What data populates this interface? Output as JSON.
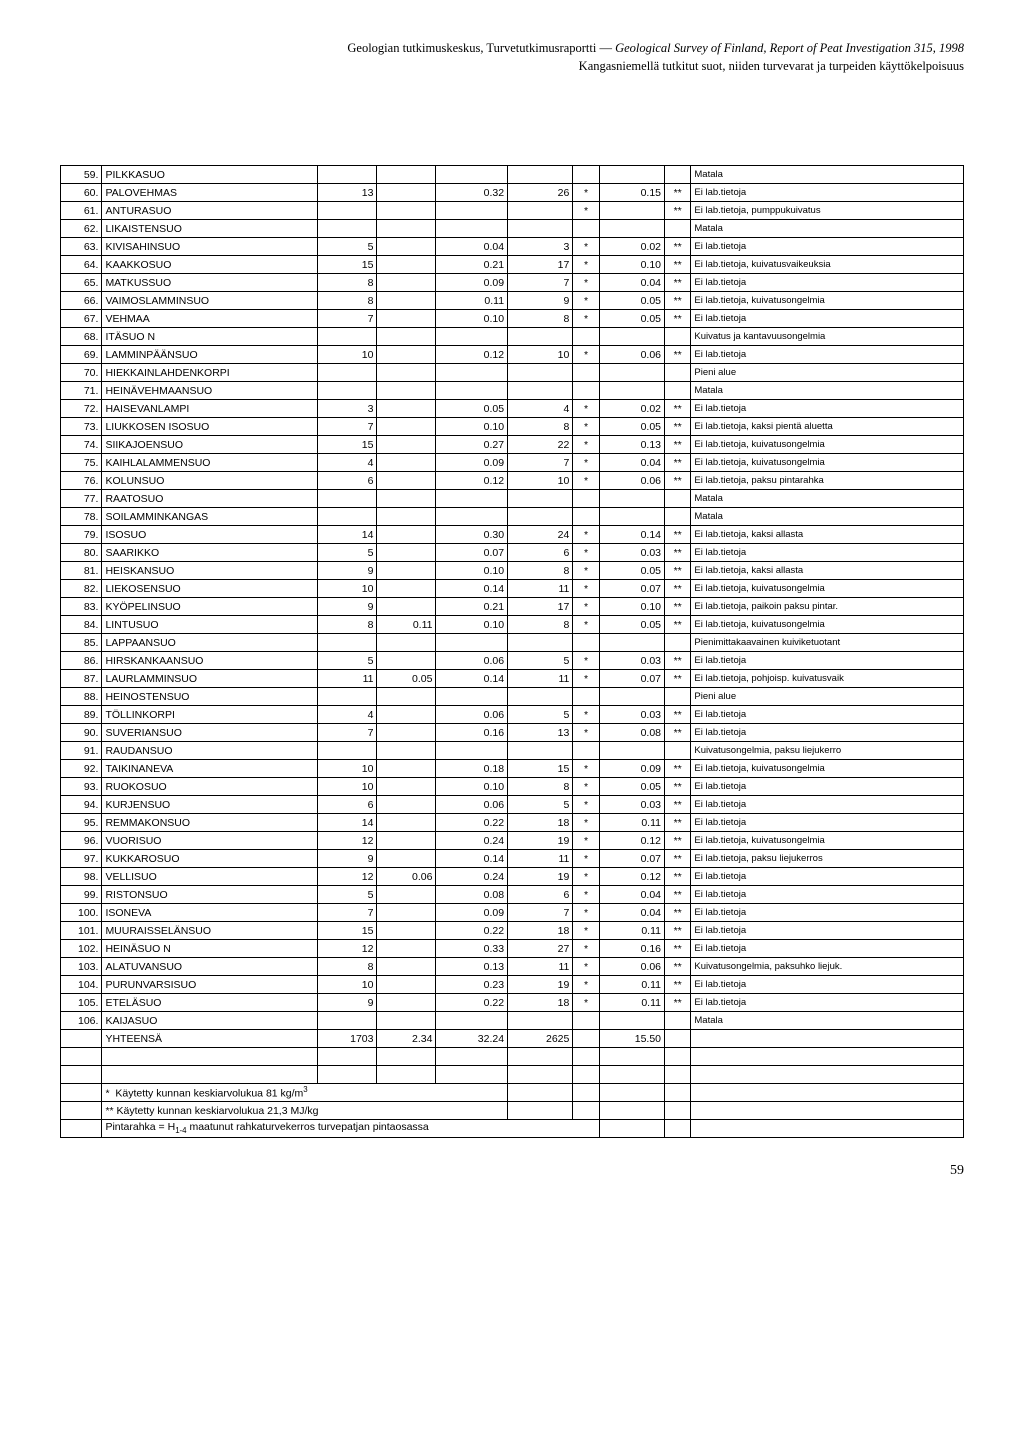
{
  "header": {
    "line1_left": "Geologian tutkimuskeskus, Turvetutkimusraportti — ",
    "line1_right": "Geological Survey of Finland, Report of Peat Investigation 315, 1998",
    "line2": "Kangasniemellä tutkitut suot, niiden turvevarat ja turpeiden käyttökelpoisuus"
  },
  "rows": [
    {
      "n": "59.",
      "name": "PILKKASUO",
      "v1": "",
      "v2": "",
      "v3": "",
      "v4": "",
      "s1": "",
      "v5": "",
      "s2": "",
      "note": "Matala"
    },
    {
      "n": "60.",
      "name": "PALOVEHMAS",
      "v1": "13",
      "v2": "",
      "v3": "0.32",
      "v4": "26",
      "s1": "*",
      "v5": "0.15",
      "s2": "**",
      "note": "Ei lab.tietoja"
    },
    {
      "n": "61.",
      "name": "ANTURASUO",
      "v1": "",
      "v2": "",
      "v3": "",
      "v4": "",
      "s1": "*",
      "v5": "",
      "s2": "**",
      "note": "Ei lab.tietoja, pumppukuivatus"
    },
    {
      "n": "62.",
      "name": "LIKAISTENSUO",
      "v1": "",
      "v2": "",
      "v3": "",
      "v4": "",
      "s1": "",
      "v5": "",
      "s2": "",
      "note": "Matala"
    },
    {
      "n": "63.",
      "name": "KIVISAHINSUO",
      "v1": "5",
      "v2": "",
      "v3": "0.04",
      "v4": "3",
      "s1": "*",
      "v5": "0.02",
      "s2": "**",
      "note": "Ei lab.tietoja"
    },
    {
      "n": "64.",
      "name": "KAAKKOSUO",
      "v1": "15",
      "v2": "",
      "v3": "0.21",
      "v4": "17",
      "s1": "*",
      "v5": "0.10",
      "s2": "**",
      "note": "Ei lab.tietoja, kuivatusvaikeuksia"
    },
    {
      "n": "65.",
      "name": "MATKUSSUO",
      "v1": "8",
      "v2": "",
      "v3": "0.09",
      "v4": "7",
      "s1": "*",
      "v5": "0.04",
      "s2": "**",
      "note": "Ei lab.tietoja"
    },
    {
      "n": "66.",
      "name": "VAIMOSLAMMINSUO",
      "v1": "8",
      "v2": "",
      "v3": "0.11",
      "v4": "9",
      "s1": "*",
      "v5": "0.05",
      "s2": "**",
      "note": "Ei lab.tietoja, kuivatusongelmia"
    },
    {
      "n": "67.",
      "name": "VEHMAA",
      "v1": "7",
      "v2": "",
      "v3": "0.10",
      "v4": "8",
      "s1": "*",
      "v5": "0.05",
      "s2": "**",
      "note": "Ei lab.tietoja"
    },
    {
      "n": "68.",
      "name": "ITÄSUO N",
      "v1": "",
      "v2": "",
      "v3": "",
      "v4": "",
      "s1": "",
      "v5": "",
      "s2": "",
      "note": "Kuivatus ja kantavuusongelmia"
    },
    {
      "n": "69.",
      "name": "LAMMINPÄÄNSUO",
      "v1": "10",
      "v2": "",
      "v3": "0.12",
      "v4": "10",
      "s1": "*",
      "v5": "0.06",
      "s2": "**",
      "note": "Ei lab.tietoja"
    },
    {
      "n": "70.",
      "name": "HIEKKAINLAHDENKORPI",
      "v1": "",
      "v2": "",
      "v3": "",
      "v4": "",
      "s1": "",
      "v5": "",
      "s2": "",
      "note": "Pieni alue"
    },
    {
      "n": "71.",
      "name": "HEINÄVEHMAANSUO",
      "v1": "",
      "v2": "",
      "v3": "",
      "v4": "",
      "s1": "",
      "v5": "",
      "s2": "",
      "note": "Matala"
    },
    {
      "n": "72.",
      "name": "HAISEVANLAMPI",
      "v1": "3",
      "v2": "",
      "v3": "0.05",
      "v4": "4",
      "s1": "*",
      "v5": "0.02",
      "s2": "**",
      "note": "Ei lab.tietoja"
    },
    {
      "n": "73.",
      "name": "LIUKKOSEN ISOSUO",
      "v1": "7",
      "v2": "",
      "v3": "0.10",
      "v4": "8",
      "s1": "*",
      "v5": "0.05",
      "s2": "**",
      "note": "Ei lab.tietoja, kaksi pientä aluetta"
    },
    {
      "n": "74.",
      "name": "SIIKAJOENSUO",
      "v1": "15",
      "v2": "",
      "v3": "0.27",
      "v4": "22",
      "s1": "*",
      "v5": "0.13",
      "s2": "**",
      "note": "Ei lab.tietoja, kuivatusongelmia"
    },
    {
      "n": "75.",
      "name": "KAIHLALAMMENSUO",
      "v1": "4",
      "v2": "",
      "v3": "0.09",
      "v4": "7",
      "s1": "*",
      "v5": "0.04",
      "s2": "**",
      "note": "Ei lab.tietoja, kuivatusongelmia"
    },
    {
      "n": "76.",
      "name": "KOLUNSUO",
      "v1": "6",
      "v2": "",
      "v3": "0.12",
      "v4": "10",
      "s1": "*",
      "v5": "0.06",
      "s2": "**",
      "note": "Ei lab.tietoja, paksu pintarahka"
    },
    {
      "n": "77.",
      "name": "RAATOSUO",
      "v1": "",
      "v2": "",
      "v3": "",
      "v4": "",
      "s1": "",
      "v5": "",
      "s2": "",
      "note": "Matala"
    },
    {
      "n": "78.",
      "name": "SOILAMMINKANGAS",
      "v1": "",
      "v2": "",
      "v3": "",
      "v4": "",
      "s1": "",
      "v5": "",
      "s2": "",
      "note": "Matala"
    },
    {
      "n": "79.",
      "name": "ISOSUO",
      "v1": "14",
      "v2": "",
      "v3": "0.30",
      "v4": "24",
      "s1": "*",
      "v5": "0.14",
      "s2": "**",
      "note": "Ei lab.tietoja, kaksi allasta"
    },
    {
      "n": "80.",
      "name": "SAARIKKO",
      "v1": "5",
      "v2": "",
      "v3": "0.07",
      "v4": "6",
      "s1": "*",
      "v5": "0.03",
      "s2": "**",
      "note": "Ei lab.tietoja"
    },
    {
      "n": "81.",
      "name": "HEISKANSUO",
      "v1": "9",
      "v2": "",
      "v3": "0.10",
      "v4": "8",
      "s1": "*",
      "v5": "0.05",
      "s2": "**",
      "note": "Ei lab.tietoja, kaksi allasta"
    },
    {
      "n": "82.",
      "name": "LIEKOSENSUO",
      "v1": "10",
      "v2": "",
      "v3": "0.14",
      "v4": "11",
      "s1": "*",
      "v5": "0.07",
      "s2": "**",
      "note": "Ei lab.tietoja, kuivatusongelmia"
    },
    {
      "n": "83.",
      "name": "KYÖPELINSUO",
      "v1": "9",
      "v2": "",
      "v3": "0.21",
      "v4": "17",
      "s1": "*",
      "v5": "0.10",
      "s2": "**",
      "note": "Ei lab.tietoja, paikoin paksu pintar."
    },
    {
      "n": "84.",
      "name": "LINTUSUO",
      "v1": "8",
      "v2": "0.11",
      "v3": "0.10",
      "v4": "8",
      "s1": "*",
      "v5": "0.05",
      "s2": "**",
      "note": "Ei lab.tietoja, kuivatusongelmia"
    },
    {
      "n": "85.",
      "name": "LAPPAANSUO",
      "v1": "",
      "v2": "",
      "v3": "",
      "v4": "",
      "s1": "",
      "v5": "",
      "s2": "",
      "note": "Pienimittakaavainen kuiviketuotant"
    },
    {
      "n": "86.",
      "name": "HIRSKANKAANSUO",
      "v1": "5",
      "v2": "",
      "v3": "0.06",
      "v4": "5",
      "s1": "*",
      "v5": "0.03",
      "s2": "**",
      "note": "Ei lab.tietoja"
    },
    {
      "n": "87.",
      "name": "LAURLAMMINSUO",
      "v1": "11",
      "v2": "0.05",
      "v3": "0.14",
      "v4": "11",
      "s1": "*",
      "v5": "0.07",
      "s2": "**",
      "note": "Ei lab.tietoja, pohjoisp. kuivatusvaik"
    },
    {
      "n": "88.",
      "name": "HEINOSTENSUO",
      "v1": "",
      "v2": "",
      "v3": "",
      "v4": "",
      "s1": "",
      "v5": "",
      "s2": "",
      "note": "Pieni alue"
    },
    {
      "n": "89.",
      "name": "TÖLLINKORPI",
      "v1": "4",
      "v2": "",
      "v3": "0.06",
      "v4": "5",
      "s1": "*",
      "v5": "0.03",
      "s2": "**",
      "note": "Ei lab.tietoja"
    },
    {
      "n": "90.",
      "name": "SUVERIANSUO",
      "v1": "7",
      "v2": "",
      "v3": "0.16",
      "v4": "13",
      "s1": "*",
      "v5": "0.08",
      "s2": "**",
      "note": "Ei lab.tietoja"
    },
    {
      "n": "91.",
      "name": "RAUDANSUO",
      "v1": "",
      "v2": "",
      "v3": "",
      "v4": "",
      "s1": "",
      "v5": "",
      "s2": "",
      "note": "Kuivatusongelmia, paksu liejukerro"
    },
    {
      "n": "92.",
      "name": "TAIKINANEVA",
      "v1": "10",
      "v2": "",
      "v3": "0.18",
      "v4": "15",
      "s1": "*",
      "v5": "0.09",
      "s2": "**",
      "note": "Ei lab.tietoja, kuivatusongelmia"
    },
    {
      "n": "93.",
      "name": "RUOKOSUO",
      "v1": "10",
      "v2": "",
      "v3": "0.10",
      "v4": "8",
      "s1": "*",
      "v5": "0.05",
      "s2": "**",
      "note": "Ei lab.tietoja"
    },
    {
      "n": "94.",
      "name": "KURJENSUO",
      "v1": "6",
      "v2": "",
      "v3": "0.06",
      "v4": "5",
      "s1": "*",
      "v5": "0.03",
      "s2": "**",
      "note": "Ei lab.tietoja"
    },
    {
      "n": "95.",
      "name": "REMMAKONSUO",
      "v1": "14",
      "v2": "",
      "v3": "0.22",
      "v4": "18",
      "s1": "*",
      "v5": "0.11",
      "s2": "**",
      "note": "Ei lab.tietoja"
    },
    {
      "n": "96.",
      "name": "VUORISUO",
      "v1": "12",
      "v2": "",
      "v3": "0.24",
      "v4": "19",
      "s1": "*",
      "v5": "0.12",
      "s2": "**",
      "note": "Ei lab.tietoja, kuivatusongelmia"
    },
    {
      "n": "97.",
      "name": "KUKKAROSUO",
      "v1": "9",
      "v2": "",
      "v3": "0.14",
      "v4": "11",
      "s1": "*",
      "v5": "0.07",
      "s2": "**",
      "note": "Ei lab.tietoja, paksu liejukerros"
    },
    {
      "n": "98.",
      "name": "VELLISUO",
      "v1": "12",
      "v2": "0.06",
      "v3": "0.24",
      "v4": "19",
      "s1": "*",
      "v5": "0.12",
      "s2": "**",
      "note": "Ei lab.tietoja"
    },
    {
      "n": "99.",
      "name": "RISTONSUO",
      "v1": "5",
      "v2": "",
      "v3": "0.08",
      "v4": "6",
      "s1": "*",
      "v5": "0.04",
      "s2": "**",
      "note": "Ei lab.tietoja"
    },
    {
      "n": "100.",
      "name": "ISONEVA",
      "v1": "7",
      "v2": "",
      "v3": "0.09",
      "v4": "7",
      "s1": "*",
      "v5": "0.04",
      "s2": "**",
      "note": "Ei lab.tietoja"
    },
    {
      "n": "101.",
      "name": "MUURAISSELÄNSUO",
      "v1": "15",
      "v2": "",
      "v3": "0.22",
      "v4": "18",
      "s1": "*",
      "v5": "0.11",
      "s2": "**",
      "note": "Ei lab.tietoja"
    },
    {
      "n": "102.",
      "name": "HEINÄSUO N",
      "v1": "12",
      "v2": "",
      "v3": "0.33",
      "v4": "27",
      "s1": "*",
      "v5": "0.16",
      "s2": "**",
      "note": "Ei lab.tietoja"
    },
    {
      "n": "103.",
      "name": "ALATUVANSUO",
      "v1": "8",
      "v2": "",
      "v3": "0.13",
      "v4": "11",
      "s1": "*",
      "v5": "0.06",
      "s2": "**",
      "note": "Kuivatusongelmia, paksuhko liejuk."
    },
    {
      "n": "104.",
      "name": "PURUNVARSISUO",
      "v1": "10",
      "v2": "",
      "v3": "0.23",
      "v4": "19",
      "s1": "*",
      "v5": "0.11",
      "s2": "**",
      "note": "Ei lab.tietoja"
    },
    {
      "n": "105.",
      "name": "ETELÄSUO",
      "v1": "9",
      "v2": "",
      "v3": "0.22",
      "v4": "18",
      "s1": "*",
      "v5": "0.11",
      "s2": "**",
      "note": "Ei lab.tietoja"
    },
    {
      "n": "106.",
      "name": "KAIJASUO",
      "v1": "",
      "v2": "",
      "v3": "",
      "v4": "",
      "s1": "",
      "v5": "",
      "s2": "",
      "note": "Matala"
    }
  ],
  "totals": {
    "label": "YHTEENSÄ",
    "v1": "1703",
    "v2": "2.34",
    "v3": "32.24",
    "v4": "2625",
    "v5": "15.50"
  },
  "footnotes": {
    "f1_star": "*",
    "f1_text": "Käytetty kunnan keskiarvolukua 81 kg/m",
    "f1_sup": "3",
    "f2": "** Käytetty kunnan keskiarvolukua 21,3 MJ/kg",
    "f3_left": "Pintarahka = H",
    "f3_sub": "1-4",
    "f3_right": " maatunut rahkaturvekerros turvepatjan pintaosassa"
  },
  "page_number": "59"
}
